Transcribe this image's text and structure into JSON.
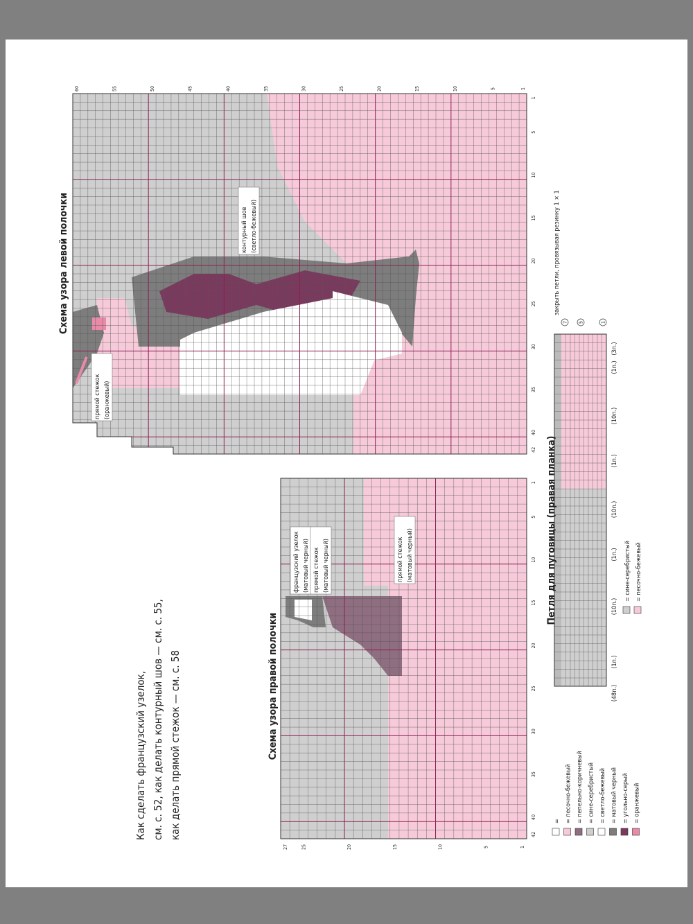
{
  "note": [
    "Как сделать французский узелок,",
    "см. с. 52, как делать контурный шов — см. с. 55,",
    "как делать прямой стежок — см. с. 58"
  ],
  "left_chart": {
    "title": "Схема узора левой полочки",
    "row_ticks": [
      1,
      5,
      10,
      15,
      20,
      25,
      30,
      35,
      40,
      45,
      50,
      55,
      60
    ],
    "col_ticks": [
      1,
      5,
      10,
      15,
      20,
      25,
      30,
      35,
      40,
      42
    ],
    "annotations": [
      [
        "контурный шов",
        "(светло-бежевый)"
      ],
      [
        "прямой стежок",
        "(оранжевый)"
      ]
    ]
  },
  "right_chart": {
    "title": "Схема узора правой полочки",
    "row_ticks": [
      1,
      5,
      10,
      15,
      20,
      25,
      27
    ],
    "col_ticks": [
      1,
      5,
      10,
      15,
      20,
      25,
      30,
      35,
      40,
      42
    ],
    "annotations": [
      [
        "французский узелок",
        "(матовый черный)"
      ],
      [
        "прямой стежок",
        "(матовый черный)"
      ],
      [
        "прямой стежок",
        "(матовый черный)"
      ]
    ]
  },
  "button_strip": {
    "title": "Петля для пуговицы (правая планка)",
    "top_note": "закрыть петли, провязывая резинку 1 × 1",
    "markers": [
      "7",
      "5",
      "1"
    ],
    "counts": [
      "(48п.)",
      "(1п.)",
      "(10п.)",
      "(1п.)",
      "(10п.)",
      "(1п.)",
      "(10п.)",
      "(1п.)",
      "(3п.)"
    ],
    "legend": [
      {
        "label": "= сине-серебристый",
        "color": "#cfcfcf"
      },
      {
        "label": "= песочно-бежевый",
        "color": "#f6cad9"
      }
    ]
  },
  "legend": [
    {
      "label": "=",
      "color": "#ffffff"
    },
    {
      "label": "= песочно-бежевый",
      "color": "#f6cad9"
    },
    {
      "label": "= пепельно-коричневый",
      "color": "#8e6e80"
    },
    {
      "label": "= сине-серебристый",
      "color": "#cfcfcf"
    },
    {
      "label": "= светло-бежевый",
      "color": "#ffffff"
    },
    {
      "label": "= матовый черный",
      "color": "#7d7d7d"
    },
    {
      "label": "= угольно-серый",
      "color": "#7a3a5e"
    },
    {
      "label": "= оранжевый",
      "color": "#e88aa8"
    }
  ]
}
